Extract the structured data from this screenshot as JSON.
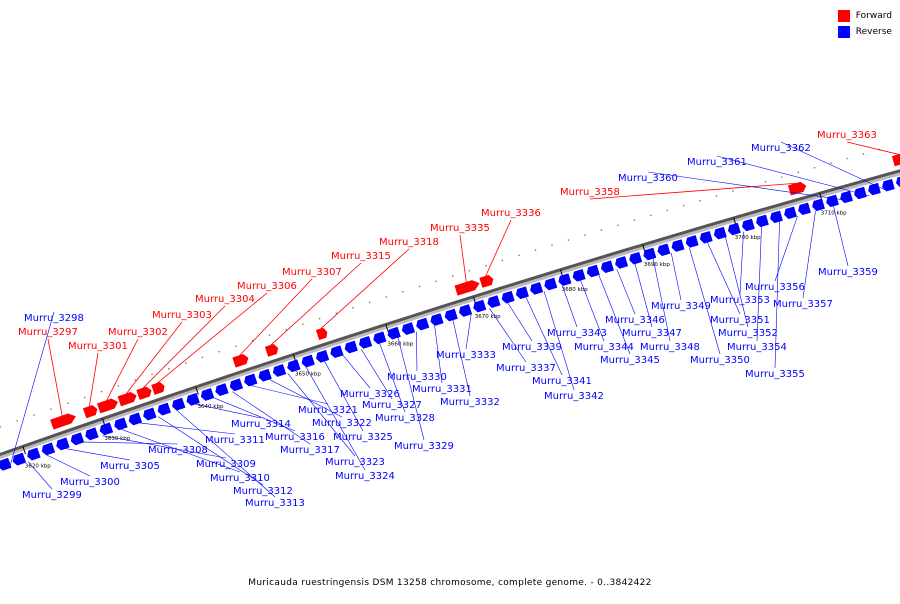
{
  "legend": {
    "forward": {
      "label": "Forward",
      "color": "#ff0000"
    },
    "reverse": {
      "label": "Reverse",
      "color": "#0000ff"
    }
  },
  "caption": "Muricauda ruestringensis DSM 13258 chromosome, complete genome. - 0..3842422",
  "ticks": [
    "3620 kbp",
    "3630 kbp",
    "3640 kbp",
    "3650 kbp",
    "3660 kbp",
    "3670 kbp",
    "3680 kbp",
    "3690 kbp",
    "3700 kbp",
    "3710 kbp"
  ],
  "forward_labels": [
    "Murru_3297",
    "Murru_3301",
    "Murru_3302",
    "Murru_3303",
    "Murru_3304",
    "Murru_3306",
    "Murru_3307",
    "Murru_3315",
    "Murru_3318",
    "Murru_3335",
    "Murru_3336",
    "Murru_3358",
    "Murru_3363"
  ],
  "reverse_labels": [
    "Murru_3298",
    "Murru_3299",
    "Murru_3300",
    "Murru_3305",
    "Murru_3308",
    "Murru_3309",
    "Murru_3310",
    "Murru_3311",
    "Murru_3312",
    "Murru_3313",
    "Murru_3314",
    "Murru_3316",
    "Murru_3317",
    "Murru_3321",
    "Murru_3322",
    "Murru_3323",
    "Murru_3324",
    "Murru_3325",
    "Murru_3326",
    "Murru_3327",
    "Murru_3328",
    "Murru_3329",
    "Murru_3330",
    "Murru_3331",
    "Murru_3332",
    "Murru_3333",
    "Murru_3337",
    "Murru_3339",
    "Murru_3341",
    "Murru_3342",
    "Murru_3343",
    "Murru_3344",
    "Murru_3345",
    "Murru_3346",
    "Murru_3347",
    "Murru_3348",
    "Murru_3349",
    "Murru_3350",
    "Murru_3351",
    "Murru_3352",
    "Murru_3353",
    "Murru_3354",
    "Murru_3355",
    "Murru_3356",
    "Murru_3357",
    "Murru_3359",
    "Murru_3360",
    "Murru_3361",
    "Murru_3362"
  ]
}
